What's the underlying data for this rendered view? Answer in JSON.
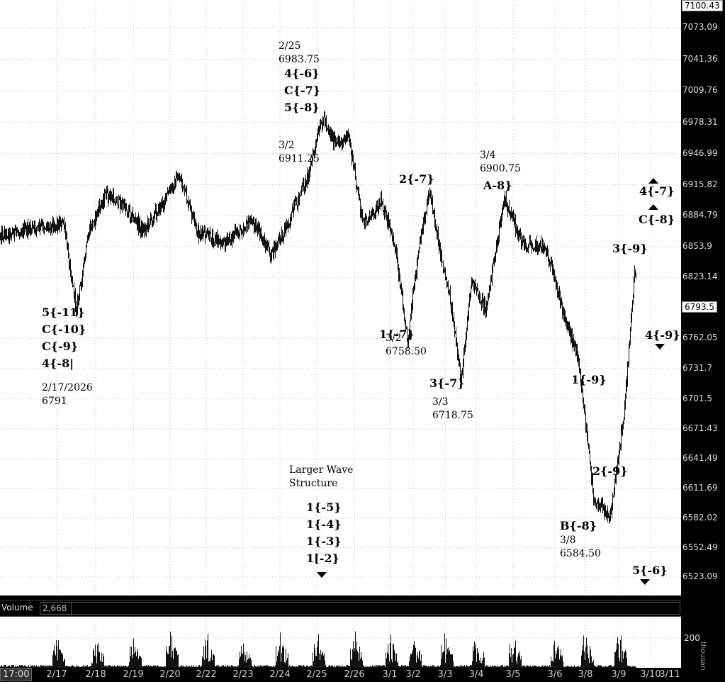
{
  "chart_data": [
    {
      "type": "line",
      "ylim": [
        6510,
        7105
      ],
      "y_ticks": [
        "7073.09",
        "7041.36",
        "7009.76",
        "6978.31",
        "6946.99",
        "6915.82",
        "6884.79",
        "6853.9",
        "6823.14",
        "6762.05",
        "6731.7",
        "6701.5",
        "6671.43",
        "6641.49",
        "6611.69",
        "6582.02",
        "6552.49",
        "6523.09"
      ],
      "top_price_box": "7100.43",
      "last_price_box": "6793.5",
      "x_ticks": [
        "2/17",
        "2/18",
        "2/19",
        "2/20",
        "2/22",
        "2/23",
        "2/24",
        "2/25",
        "2/26",
        "3/1",
        "3/2",
        "3/3",
        "3/4",
        "3/5",
        "3/6",
        "3/8",
        "3/9",
        "3/10",
        "3/11"
      ],
      "x_start_label": "17:00",
      "series": [
        {
          "x": [
            "2/16",
            "2/17",
            "2/17",
            "2/17",
            "2/18",
            "2/18",
            "2/19",
            "2/19",
            "2/20",
            "2/20",
            "2/22",
            "2/23",
            "2/23",
            "2/24",
            "2/24",
            "2/25",
            "2/25",
            "2/25",
            "2/26",
            "2/26",
            "3/1",
            "3/1",
            "3/2",
            "3/2",
            "3/2",
            "3/3",
            "3/3",
            "3/3",
            "3/4",
            "3/4",
            "3/5",
            "3/5",
            "3/6",
            "3/6",
            "3/8",
            "3/8",
            "3/9",
            "3/9",
            "3/9"
          ],
          "y": [
            6866,
            6878,
            6791,
            6870,
            6906,
            6895,
            6870,
            6895,
            6925,
            6868,
            6858,
            6880,
            6845,
            6880,
            6925,
            6983.75,
            6955,
            6965,
            6875,
            6900,
            6850,
            6760,
            6850,
            6911.25,
            6850,
            6800,
            6718.75,
            6820,
            6790,
            6900.75,
            6855,
            6855,
            6790,
            6745,
            6600,
            6584.5,
            6690,
            6830,
            6793.5
          ]
        }
      ],
      "annotations": [
        {
          "lines": [
            "5{-11}",
            "C{-10}",
            "C{-9}",
            "4{-8|"
          ],
          "style": "bold"
        },
        {
          "lines": [
            "2/17/2026",
            "6791"
          ],
          "style": "plain"
        },
        {
          "lines": [
            "2/25",
            "6983.75"
          ],
          "style": "plain"
        },
        {
          "lines": [
            "4{-6}",
            "C{-7}",
            "5{-8}"
          ],
          "style": "bold"
        },
        {
          "lines": [
            "3/2",
            "6911.25"
          ],
          "style": "plain"
        },
        {
          "lines": [
            "2{-7}"
          ],
          "style": "bold"
        },
        {
          "lines": [
            "3/4",
            "6900.75"
          ],
          "style": "plain"
        },
        {
          "lines": [
            "A-8}"
          ],
          "style": "bold"
        },
        {
          "lines": [
            "1{-7}"
          ],
          "style": "bold"
        },
        {
          "lines": [
            "3/2",
            "6758.50"
          ],
          "style": "plain"
        },
        {
          "lines": [
            "3{-7}"
          ],
          "style": "bold"
        },
        {
          "lines": [
            "3/3",
            "6718.75"
          ],
          "style": "plain"
        },
        {
          "lines": [
            "Larger Wave",
            "Structure"
          ],
          "style": "plain"
        },
        {
          "lines": [
            "1{-5}",
            "1{-4}",
            "1{-3}",
            "1[-2}"
          ],
          "style": "bold"
        },
        {
          "lines": [
            "4{-7}"
          ],
          "style": "bold"
        },
        {
          "lines": [
            "C{-8}"
          ],
          "style": "bold"
        },
        {
          "lines": [
            "3{-9}"
          ],
          "style": "bold"
        },
        {
          "lines": [
            "4{-9}"
          ],
          "style": "bold"
        },
        {
          "lines": [
            "1{-9}"
          ],
          "style": "bold"
        },
        {
          "lines": [
            "2{-9}"
          ],
          "style": "bold"
        },
        {
          "lines": [
            "B{-8}"
          ],
          "style": "bold"
        },
        {
          "lines": [
            "3/8",
            "6584.50"
          ],
          "style": "plain"
        },
        {
          "lines": [
            "5{-6}"
          ],
          "style": "bold"
        }
      ]
    },
    {
      "type": "bar",
      "title": "Volume",
      "current_value": "2,668",
      "y_ticks": [
        "200"
      ],
      "ylim": [
        0,
        280
      ],
      "axis_unit_label": "thousan"
    }
  ]
}
